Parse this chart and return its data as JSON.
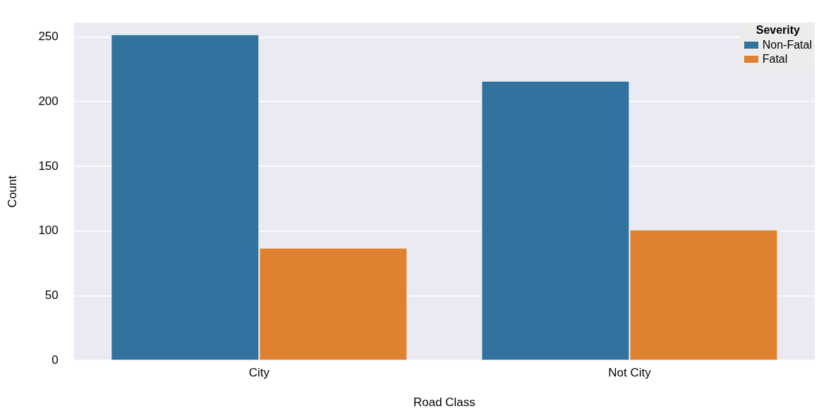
{
  "chart_data": {
    "type": "bar",
    "xlabel": "Road Class",
    "ylabel": "Count",
    "legend_title": "Severity",
    "categories": [
      "City",
      "Not City"
    ],
    "series": [
      {
        "name": "Non-Fatal",
        "color": "#31729f",
        "values": [
          252,
          216
        ]
      },
      {
        "name": "Fatal",
        "color": "#e0812f",
        "values": [
          87,
          101
        ]
      }
    ],
    "ylim": [
      0,
      261
    ],
    "yticks": [
      0,
      50,
      100,
      150,
      200,
      250
    ],
    "grid": "y",
    "legend": "top right"
  }
}
